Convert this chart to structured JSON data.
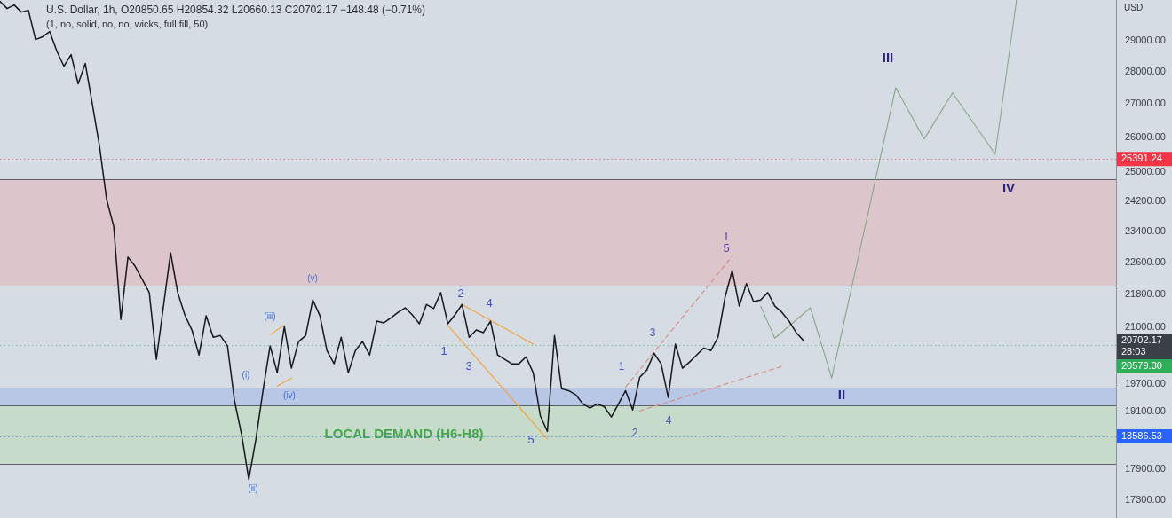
{
  "chart_data": {
    "type": "line",
    "title": "U.S. Dollar, 1h, O20850.65 H20854.32 L20660.13 C20702.17 −148.48 (−0.71%)",
    "subtitle": "(1, no, solid, no, no, wicks, full fill, 50)",
    "ylabel": "USD",
    "categories": [
      null,
      null,
      null,
      null,
      null,
      null,
      null,
      null,
      null,
      null,
      null,
      null,
      null,
      null,
      null,
      null,
      null,
      null,
      null,
      null,
      null,
      null,
      null,
      null,
      null,
      null,
      null,
      null,
      null,
      null,
      null,
      null,
      null,
      null,
      null,
      null,
      null,
      null,
      null,
      null,
      null,
      null,
      null,
      null,
      null,
      null,
      null,
      null,
      null,
      null,
      null,
      null,
      null,
      null,
      null,
      null,
      null,
      null,
      null,
      null,
      null,
      null,
      null,
      null,
      null,
      null,
      null,
      null,
      null,
      null,
      null,
      null,
      null,
      null,
      null,
      null,
      null,
      null,
      null,
      null,
      null,
      null,
      null,
      null,
      null,
      null,
      null,
      null,
      null,
      null,
      null,
      null,
      null,
      null,
      null,
      null,
      null,
      null,
      null,
      null,
      null,
      null,
      null,
      null,
      null,
      null,
      null,
      null,
      null,
      null,
      null,
      null,
      null,
      null,
      null,
      null,
      null,
      null,
      null,
      null,
      null,
      null,
      null,
      null,
      null,
      null,
      null,
      null,
      null,
      null,
      null,
      null,
      null,
      null,
      null,
      null,
      null,
      null,
      null,
      null,
      null,
      null,
      null,
      null,
      null,
      null,
      null,
      null,
      null,
      null,
      null,
      null,
      null,
      null,
      null,
      null,
      null,
      null
    ],
    "series": [
      {
        "color": "#16181c",
        "values": [
          30300,
          30060,
          30180,
          29940,
          30000,
          29030,
          29120,
          29290,
          28650,
          28170,
          28540,
          27620,
          28260,
          26990,
          25750,
          24250,
          23530,
          21190,
          22730,
          22500,
          22170,
          21840,
          20260,
          21510,
          22840,
          21840,
          21300,
          20940,
          20360,
          21280,
          20770,
          20810,
          20570,
          19330,
          18610,
          17700,
          18520,
          19560,
          20570,
          19960,
          21020,
          20060,
          20670,
          20810,
          21660,
          21280,
          20460,
          20160,
          20770,
          19960,
          20460,
          20670,
          20360,
          21150,
          21110,
          21230,
          21360,
          21470,
          21300,
          21090,
          21550,
          21450,
          21840,
          21090,
          21300,
          21550,
          20770,
          20940,
          20880,
          21150,
          20360,
          20260,
          20160,
          20160,
          20320,
          19960,
          19020,
          18680,
          20810,
          19600,
          19560,
          19470,
          19270,
          19180,
          19270,
          19210,
          18990,
          19270,
          19560,
          19140,
          19860,
          20020,
          20400,
          20160,
          19410,
          20610,
          20060,
          20200,
          20360,
          20520,
          20460,
          20770,
          21730,
          22390,
          21510,
          22060,
          21620,
          21660,
          21840,
          21510,
          21360,
          21150,
          20880,
          20700,
          null,
          null,
          null,
          null,
          null,
          null,
          null,
          null,
          null,
          null,
          null,
          null,
          null,
          null,
          null,
          null,
          null,
          null,
          null,
          null,
          null,
          null,
          null,
          null,
          null,
          null,
          null,
          null,
          null,
          null,
          null,
          null,
          null,
          null,
          null,
          null,
          null,
          null,
          null,
          null,
          null,
          null,
          null,
          null
        ]
      },
      {
        "color": "#86a886",
        "values": [
          null,
          null,
          null,
          null,
          null,
          null,
          null,
          null,
          null,
          null,
          null,
          null,
          null,
          null,
          null,
          null,
          null,
          null,
          null,
          null,
          null,
          null,
          null,
          null,
          null,
          null,
          null,
          null,
          null,
          null,
          null,
          null,
          null,
          null,
          null,
          null,
          null,
          null,
          null,
          null,
          null,
          null,
          null,
          null,
          null,
          null,
          null,
          null,
          null,
          null,
          null,
          null,
          null,
          null,
          null,
          null,
          null,
          null,
          null,
          null,
          null,
          null,
          null,
          null,
          null,
          null,
          null,
          null,
          null,
          null,
          null,
          null,
          null,
          null,
          null,
          null,
          null,
          null,
          null,
          null,
          null,
          null,
          null,
          null,
          null,
          null,
          null,
          null,
          null,
          null,
          null,
          null,
          null,
          null,
          null,
          null,
          null,
          null,
          null,
          null,
          null,
          null,
          null,
          null,
          null,
          null,
          null,
          21510,
          null,
          20750,
          null,
          null,
          null,
          null,
          21470,
          null,
          null,
          19840,
          null,
          null,
          null,
          null,
          null,
          null,
          null,
          null,
          27500,
          null,
          null,
          null,
          25960,
          null,
          null,
          null,
          27340,
          null,
          null,
          null,
          null,
          null,
          25520,
          null,
          null,
          30350,
          null,
          null,
          null,
          null,
          null,
          null,
          null,
          null,
          null,
          null,
          null,
          null,
          null,
          null
        ]
      },
      {
        "color": "#f2a23a",
        "values": [
          null,
          null,
          null,
          null,
          null,
          null,
          null,
          null,
          null,
          null,
          null,
          null,
          null,
          null,
          null,
          null,
          null,
          null,
          null,
          null,
          null,
          null,
          null,
          null,
          null,
          null,
          null,
          null,
          null,
          null,
          null,
          null,
          null,
          null,
          null,
          null,
          null,
          null,
          null,
          null,
          null,
          null,
          null,
          null,
          null,
          null,
          null,
          null,
          null,
          null,
          null,
          null,
          null,
          null,
          null,
          null,
          null,
          null,
          null,
          null,
          null,
          null,
          null,
          21050,
          null,
          null,
          null,
          null,
          null,
          null,
          null,
          null,
          null,
          null,
          null,
          null,
          null,
          18520,
          null,
          null,
          null,
          null,
          null,
          null,
          null,
          null,
          null,
          null,
          null,
          null,
          null,
          null,
          null,
          null,
          null,
          null,
          null,
          null,
          null,
          null,
          null,
          null,
          null,
          null,
          null,
          null,
          null,
          null,
          null,
          null,
          null,
          null,
          null,
          null,
          null,
          null,
          null,
          null,
          null,
          null,
          null,
          null,
          null,
          null,
          null,
          null,
          null,
          null,
          null,
          null,
          null,
          null,
          null,
          null,
          null,
          null,
          null,
          null,
          null,
          null,
          null,
          null,
          null,
          null,
          null,
          null,
          null,
          null,
          null,
          null,
          null,
          null,
          null,
          null,
          null,
          null,
          null,
          null
        ]
      },
      {
        "color": "#f2a23a",
        "values": [
          null,
          null,
          null,
          null,
          null,
          null,
          null,
          null,
          null,
          null,
          null,
          null,
          null,
          null,
          null,
          null,
          null,
          null,
          null,
          null,
          null,
          null,
          null,
          null,
          null,
          null,
          null,
          null,
          null,
          null,
          null,
          null,
          null,
          null,
          null,
          null,
          null,
          null,
          null,
          null,
          null,
          null,
          null,
          null,
          null,
          null,
          null,
          null,
          null,
          null,
          null,
          null,
          null,
          null,
          null,
          null,
          null,
          null,
          null,
          null,
          null,
          null,
          null,
          null,
          null,
          21550,
          null,
          null,
          null,
          null,
          null,
          null,
          null,
          null,
          null,
          20610,
          null,
          null,
          null,
          null,
          null,
          null,
          null,
          null,
          null,
          null,
          null,
          null,
          null,
          null,
          null,
          null,
          null,
          null,
          null,
          null,
          null,
          null,
          null,
          null,
          null,
          null,
          null,
          null,
          null,
          null,
          null,
          null,
          null,
          null,
          null,
          null,
          null,
          null,
          null,
          null,
          null,
          null,
          null,
          null,
          null,
          null,
          null,
          null,
          null,
          null,
          null,
          null,
          null,
          null,
          null,
          null,
          null,
          null,
          null,
          null,
          null,
          null,
          null,
          null,
          null,
          null,
          null,
          null,
          null,
          null,
          null,
          null,
          null,
          null,
          null,
          null,
          null,
          null,
          null,
          null,
          null,
          null
        ]
      },
      {
        "color": "#f2a23a",
        "values": [
          null,
          null,
          null,
          null,
          null,
          null,
          null,
          null,
          null,
          null,
          null,
          null,
          null,
          null,
          null,
          null,
          null,
          null,
          null,
          null,
          null,
          null,
          null,
          null,
          null,
          null,
          null,
          null,
          null,
          null,
          null,
          null,
          null,
          null,
          null,
          null,
          null,
          null,
          20830,
          null,
          21060,
          null,
          null,
          null,
          null,
          null,
          null,
          null,
          null,
          null,
          null,
          null,
          null,
          null,
          null,
          null,
          null,
          null,
          null,
          null,
          null,
          null,
          null,
          null,
          null,
          null,
          null,
          null,
          null,
          null,
          null,
          null,
          null,
          null,
          null,
          null,
          null,
          null,
          null,
          null,
          null,
          null,
          null,
          null,
          null,
          null,
          null,
          null,
          null,
          null,
          null,
          null,
          null,
          null,
          null,
          null,
          null,
          null,
          null,
          null,
          null,
          null,
          null,
          null,
          null,
          null,
          null,
          null,
          null,
          null,
          null,
          null,
          null,
          null,
          null,
          null,
          null,
          null,
          null,
          null,
          null,
          null,
          null,
          null,
          null,
          null,
          null,
          null,
          null,
          null,
          null,
          null,
          null,
          null,
          null,
          null,
          null,
          null,
          null,
          null,
          null,
          null,
          null,
          null,
          null,
          null,
          null,
          null,
          null,
          null,
          null,
          null,
          null,
          null,
          null,
          null,
          null,
          null
        ]
      },
      {
        "color": "#f2a23a",
        "values": [
          null,
          null,
          null,
          null,
          null,
          null,
          null,
          null,
          null,
          null,
          null,
          null,
          null,
          null,
          null,
          null,
          null,
          null,
          null,
          null,
          null,
          null,
          null,
          null,
          null,
          null,
          null,
          null,
          null,
          null,
          null,
          null,
          null,
          null,
          null,
          null,
          null,
          null,
          null,
          19660,
          null,
          19840,
          null,
          null,
          null,
          null,
          null,
          null,
          null,
          null,
          null,
          null,
          null,
          null,
          null,
          null,
          null,
          null,
          null,
          null,
          null,
          null,
          null,
          null,
          null,
          null,
          null,
          null,
          null,
          null,
          null,
          null,
          null,
          null,
          null,
          null,
          null,
          null,
          null,
          null,
          null,
          null,
          null,
          null,
          null,
          null,
          null,
          null,
          null,
          null,
          null,
          null,
          null,
          null,
          null,
          null,
          null,
          null,
          null,
          null,
          null,
          null,
          null,
          null,
          null,
          null,
          null,
          null,
          null,
          null,
          null,
          null,
          null,
          null,
          null,
          null,
          null,
          null,
          null,
          null,
          null,
          null,
          null,
          null,
          null,
          null,
          null,
          null,
          null,
          null,
          null,
          null,
          null,
          null,
          null,
          null,
          null,
          null,
          null,
          null,
          null,
          null,
          null,
          null,
          null,
          null,
          null,
          null,
          null,
          null,
          null,
          null,
          null,
          null,
          null,
          null,
          null,
          null
        ]
      },
      {
        "color": "#d9897f",
        "line_style": "dashed",
        "values": [
          null,
          null,
          null,
          null,
          null,
          null,
          null,
          null,
          null,
          null,
          null,
          null,
          null,
          null,
          null,
          null,
          null,
          null,
          null,
          null,
          null,
          null,
          null,
          null,
          null,
          null,
          null,
          null,
          null,
          null,
          null,
          null,
          null,
          null,
          null,
          null,
          null,
          null,
          null,
          null,
          null,
          null,
          null,
          null,
          null,
          null,
          null,
          null,
          null,
          null,
          null,
          null,
          null,
          null,
          null,
          null,
          null,
          null,
          null,
          null,
          null,
          null,
          null,
          null,
          null,
          null,
          null,
          null,
          null,
          null,
          null,
          null,
          null,
          null,
          null,
          null,
          null,
          null,
          null,
          null,
          null,
          null,
          null,
          null,
          null,
          null,
          null,
          null,
          19640,
          null,
          null,
          null,
          null,
          null,
          null,
          null,
          null,
          null,
          null,
          null,
          null,
          null,
          null,
          22750,
          null,
          null,
          null,
          null,
          null,
          null,
          null,
          null,
          null,
          null,
          null,
          null,
          null,
          null,
          null,
          null,
          null,
          null,
          null,
          null,
          null,
          null,
          null,
          null,
          null,
          null,
          null,
          null,
          null,
          null,
          null,
          null,
          null,
          null,
          null,
          null,
          null,
          null,
          null,
          null,
          null,
          null,
          null,
          null,
          null,
          null,
          null,
          null,
          null,
          null,
          null,
          null,
          null,
          null
        ]
      },
      {
        "color": "#d9897f",
        "line_style": "dashed",
        "values": [
          null,
          null,
          null,
          null,
          null,
          null,
          null,
          null,
          null,
          null,
          null,
          null,
          null,
          null,
          null,
          null,
          null,
          null,
          null,
          null,
          null,
          null,
          null,
          null,
          null,
          null,
          null,
          null,
          null,
          null,
          null,
          null,
          null,
          null,
          null,
          null,
          null,
          null,
          null,
          null,
          null,
          null,
          null,
          null,
          null,
          null,
          null,
          null,
          null,
          null,
          null,
          null,
          null,
          null,
          null,
          null,
          null,
          null,
          null,
          null,
          null,
          null,
          null,
          null,
          null,
          null,
          null,
          null,
          null,
          null,
          null,
          null,
          null,
          null,
          null,
          null,
          null,
          null,
          null,
          null,
          null,
          null,
          null,
          null,
          null,
          null,
          null,
          null,
          null,
          null,
          19120,
          null,
          null,
          null,
          null,
          null,
          null,
          null,
          null,
          null,
          null,
          null,
          null,
          null,
          null,
          null,
          null,
          null,
          null,
          null,
          20100,
          null,
          null,
          null,
          null,
          null,
          null,
          null,
          null,
          null,
          null,
          null,
          null,
          null,
          null,
          null,
          null,
          null,
          null,
          null,
          null,
          null,
          null,
          null,
          null,
          null,
          null,
          null,
          null,
          null,
          null,
          null,
          null,
          null,
          null,
          null,
          null,
          null,
          null,
          null,
          null,
          null,
          null,
          null,
          null,
          null,
          null,
          null
        ]
      }
    ],
    "log": true,
    "ylim": [
      16950,
      30350
    ],
    "yticks": [
      {
        "value": 17300,
        "label": "17300.00"
      },
      {
        "value": 17900,
        "label": "17900.00"
      },
      {
        "value": 19100,
        "label": "19100.00"
      },
      {
        "value": 19700,
        "label": "19700.00"
      },
      {
        "value": 21000,
        "label": "21000.00"
      },
      {
        "value": 21800,
        "label": "21800.00"
      },
      {
        "value": 22600,
        "label": "22600.00"
      },
      {
        "value": 23400,
        "label": "23400.00"
      },
      {
        "value": 24200,
        "label": "24200.00"
      },
      {
        "value": 25000,
        "label": "25000.00"
      },
      {
        "value": 26000,
        "label": "26000.00"
      },
      {
        "value": 27000,
        "label": "27000.00"
      },
      {
        "value": 28000,
        "label": "28000.00"
      },
      {
        "value": 29000,
        "label": "29000.00"
      }
    ],
    "tick_labels": "y",
    "grid": false,
    "legend": false,
    "marker": "none",
    "bands": [
      {
        "axis": "y",
        "from": 22010,
        "to": 24820,
        "color": "#dcc6cc"
      },
      {
        "axis": "y",
        "from": 19230,
        "to": 19620,
        "color": "#b9c7e6"
      },
      {
        "axis": "y",
        "from": 18020,
        "to": 19230,
        "color": "#c6dbc9",
        "label": "LOCAL DEMAND (H6-H8)"
      }
    ],
    "ref_lines": [
      {
        "axis": "y",
        "value": 25391.24,
        "label": "25391.24",
        "color": "#f23645",
        "line_style": "dotted"
      },
      {
        "axis": "y",
        "value": 20702.17,
        "label": "20702.17\n28:03",
        "color": "#3b3f47",
        "line_style": "solid"
      },
      {
        "axis": "y",
        "value": 20579.3,
        "label": "20579.30",
        "color": "#2fae5a",
        "line_style": "dotted"
      },
      {
        "axis": "y",
        "value": 18586.53,
        "label": "18586.53",
        "color": "#2962ff",
        "line_style": "dotted"
      }
    ],
    "annotations": [
      "(i)",
      "(ii)",
      "(iii)",
      "(iv)",
      "(v)",
      "1",
      "2",
      "3",
      "4",
      "5",
      "1",
      "2",
      "3",
      "4",
      "I",
      "5",
      "II",
      "III",
      "IV"
    ]
  }
}
